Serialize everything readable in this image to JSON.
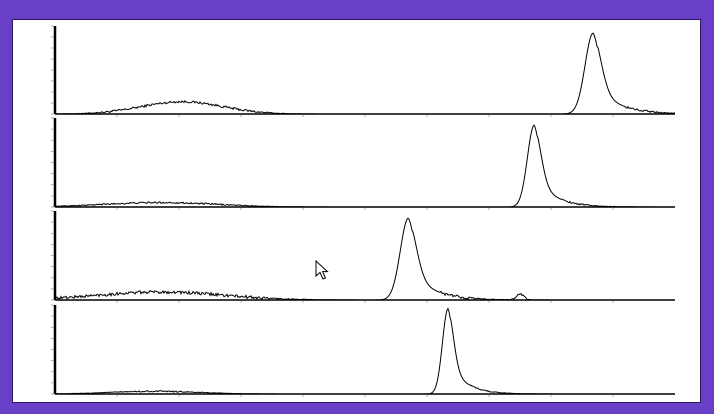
{
  "colors": {
    "frame": "#6a3fc8",
    "panel": "#ffffff",
    "trace": "#000000",
    "axis": "#000000",
    "ticks": "#8a8a8a"
  },
  "icons": {
    "cursor": "arrow-pointer-icon"
  },
  "chart_data": [
    {
      "type": "line",
      "title": "",
      "xlabel": "",
      "ylabel": "",
      "xlim": [
        0,
        100
      ],
      "ylim": [
        0,
        100
      ],
      "grid": false,
      "series": [
        {
          "peak_x": 86.8,
          "peak_height": 92,
          "peak_width": 1.3,
          "tail": 3.5,
          "bumps": [
            {
              "x": 20.5,
              "h": 14,
              "w": 6.5
            }
          ],
          "noise": 2.5
        }
      ]
    },
    {
      "type": "line",
      "title": "",
      "xlabel": "",
      "ylabel": "",
      "xlim": [
        0,
        100
      ],
      "ylim": [
        0,
        100
      ],
      "grid": false,
      "series": [
        {
          "peak_x": 77.3,
          "peak_height": 92,
          "peak_width": 1.1,
          "tail": 3.0,
          "bumps": [
            {
              "x": 17.0,
              "h": 5,
              "w": 9
            }
          ],
          "noise": 1.8
        }
      ]
    },
    {
      "type": "line",
      "title": "",
      "xlabel": "",
      "ylabel": "",
      "xlim": [
        0,
        100
      ],
      "ylim": [
        0,
        100
      ],
      "grid": false,
      "series": [
        {
          "peak_x": 57.0,
          "peak_height": 92,
          "peak_width": 1.3,
          "tail": 3.5,
          "bumps": [
            {
              "x": 17.0,
              "h": 9,
              "w": 10
            },
            {
              "x": 75.0,
              "h": 6,
              "w": 0.6
            }
          ],
          "noise": 3.5
        }
      ]
    },
    {
      "type": "line",
      "title": "",
      "xlabel": "",
      "ylabel": "",
      "xlim": [
        0,
        100
      ],
      "ylim": [
        0,
        100
      ],
      "grid": false,
      "series": [
        {
          "peak_x": 63.4,
          "peak_height": 96,
          "peak_width": 0.9,
          "tail": 2.6,
          "bumps": [
            {
              "x": 16.0,
              "h": 3,
              "w": 7
            }
          ],
          "noise": 1.5
        }
      ]
    }
  ]
}
